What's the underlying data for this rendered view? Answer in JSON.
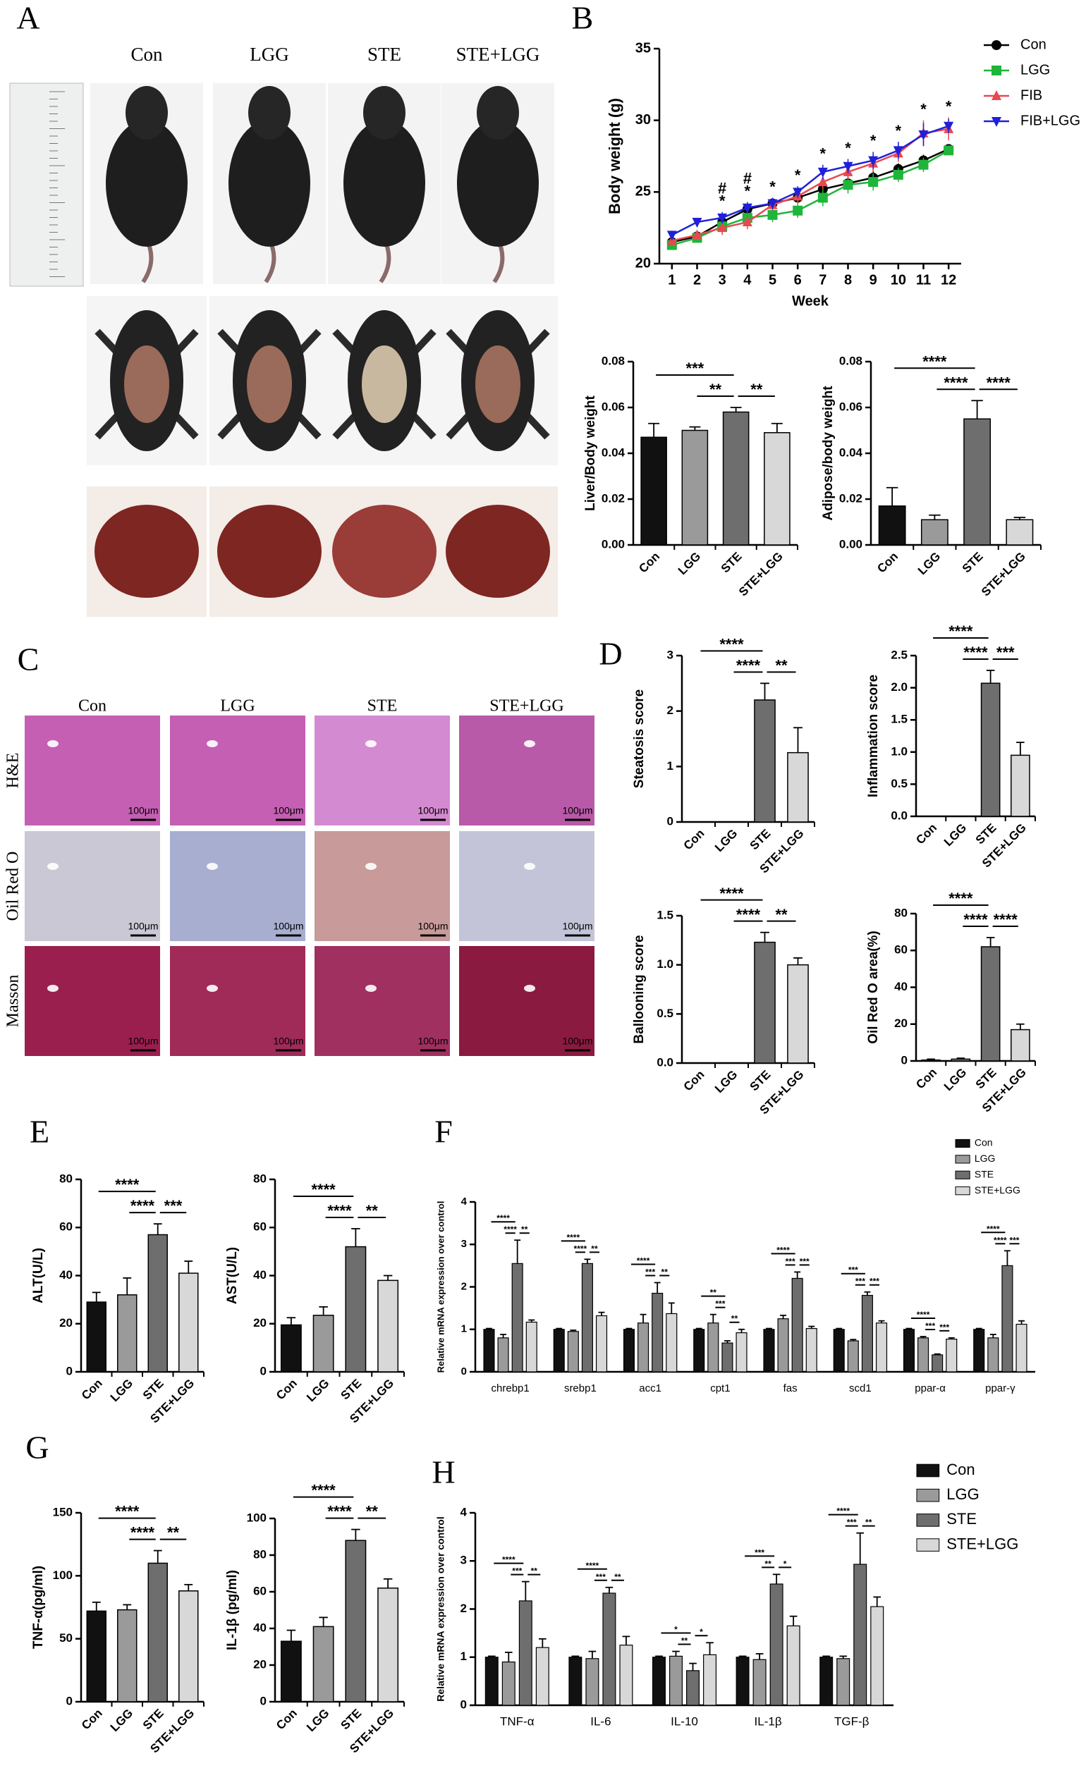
{
  "figure": {
    "panel_labels": [
      "A",
      "B",
      "C",
      "D",
      "E",
      "F",
      "G",
      "H"
    ],
    "photo_groups": [
      "Con",
      "LGG",
      "STE",
      "STE+LGG"
    ],
    "histology_groups": [
      "Con",
      "LGG",
      "STE",
      "STE+LGG"
    ],
    "histology_stains": [
      "H&E",
      "Oil Red O",
      "Masson"
    ],
    "scale_bar": "100μm"
  },
  "chart_data": [
    {
      "type": "line",
      "xlabel": "Week",
      "ylabel": "Body weight (g)",
      "x": [
        1,
        2,
        3,
        4,
        5,
        6,
        7,
        8,
        9,
        10,
        11,
        12
      ],
      "xlim": [
        0.5,
        12.5
      ],
      "xticks": [
        1,
        2,
        3,
        4,
        5,
        6,
        7,
        8,
        9,
        10,
        11,
        12
      ],
      "ylim": [
        20,
        35
      ],
      "yticks": [
        20,
        25,
        30,
        35
      ],
      "legend": "upper right",
      "series": [
        {
          "name": "Con",
          "color": "#000000",
          "marker": "circle",
          "values": [
            21.5,
            21.9,
            22.9,
            23.8,
            24.2,
            24.6,
            25.2,
            25.6,
            26.0,
            26.6,
            27.2,
            28.0
          ],
          "errors": [
            0.3,
            0.3,
            0.4,
            0.3,
            0.3,
            0.3,
            0.5,
            0.5,
            0.5,
            0.4,
            0.4,
            0.3
          ]
        },
        {
          "name": "LGG",
          "color": "#1fb53a",
          "marker": "square",
          "values": [
            21.3,
            21.8,
            22.6,
            23.2,
            23.4,
            23.7,
            24.6,
            25.5,
            25.7,
            26.2,
            26.9,
            27.9
          ],
          "errors": [
            0.3,
            0.3,
            0.5,
            0.5,
            0.5,
            0.5,
            0.6,
            0.6,
            0.6,
            0.5,
            0.5,
            0.3
          ]
        },
        {
          "name": "FIB",
          "color": "#e84850",
          "marker": "triangle-up",
          "values": [
            21.6,
            22.0,
            22.5,
            22.9,
            24.1,
            24.7,
            25.7,
            26.4,
            27.0,
            27.7,
            29.1,
            29.4
          ],
          "errors": [
            0.3,
            0.3,
            0.5,
            0.5,
            0.4,
            0.5,
            0.5,
            0.5,
            0.6,
            0.6,
            0.9,
            0.8
          ]
        },
        {
          "name": "FIB+LGG",
          "color": "#2020d8",
          "marker": "triangle-down",
          "values": [
            22.0,
            22.9,
            23.2,
            23.9,
            24.2,
            25.0,
            26.4,
            26.8,
            27.2,
            27.9,
            29.0,
            29.6
          ],
          "errors": [
            0.3,
            0.3,
            0.4,
            0.4,
            0.4,
            0.4,
            0.5,
            0.5,
            0.6,
            0.6,
            0.8,
            0.5
          ]
        }
      ],
      "annotations": [
        {
          "x": 3,
          "text": "*"
        },
        {
          "x": 3,
          "text": "#",
          "color": "#4a4ae0"
        },
        {
          "x": 4,
          "text": "*"
        },
        {
          "x": 4,
          "text": "#",
          "color": "#4a4ae0"
        },
        {
          "x": 5,
          "text": "*"
        },
        {
          "x": 6,
          "text": "*"
        },
        {
          "x": 7,
          "text": "*"
        },
        {
          "x": 8,
          "text": "*"
        },
        {
          "x": 9,
          "text": "*"
        },
        {
          "x": 10,
          "text": "*"
        },
        {
          "x": 11,
          "text": "*"
        },
        {
          "x": 12,
          "text": "*"
        }
      ]
    },
    {
      "type": "bar",
      "ylabel": "Liver/Body weight",
      "categories": [
        "Con",
        "LGG",
        "STE",
        "STE+LGG"
      ],
      "colors": [
        "#111111",
        "#9a9a9a",
        "#6e6e6e",
        "#d8d8d8"
      ],
      "values": [
        0.047,
        0.05,
        0.058,
        0.049
      ],
      "errors": [
        0.006,
        0.0015,
        0.002,
        0.004
      ],
      "ylim": [
        0,
        0.08
      ],
      "yticks": [
        {
          "value": 0,
          "label": "0.00"
        },
        {
          "value": 0.02,
          "label": "0.02"
        },
        {
          "value": 0.04,
          "label": "0.04"
        },
        {
          "value": 0.06,
          "label": "0.06"
        },
        {
          "value": 0.08,
          "label": "0.08"
        }
      ],
      "annotations": [
        {
          "between": [
            "Con",
            "STE"
          ],
          "text": "***"
        },
        {
          "between": [
            "LGG",
            "STE"
          ],
          "text": "**"
        },
        {
          "between": [
            "STE",
            "STE+LGG"
          ],
          "text": "**"
        }
      ]
    },
    {
      "type": "bar",
      "ylabel": "Adipose/body weight",
      "categories": [
        "Con",
        "LGG",
        "STE",
        "STE+LGG"
      ],
      "colors": [
        "#111111",
        "#9a9a9a",
        "#6e6e6e",
        "#d8d8d8"
      ],
      "values": [
        0.017,
        0.011,
        0.055,
        0.011
      ],
      "errors": [
        0.008,
        0.002,
        0.008,
        0.001
      ],
      "ylim": [
        0,
        0.08
      ],
      "yticks": [
        {
          "value": 0,
          "label": "0.00"
        },
        {
          "value": 0.02,
          "label": "0.02"
        },
        {
          "value": 0.04,
          "label": "0.04"
        },
        {
          "value": 0.06,
          "label": "0.06"
        },
        {
          "value": 0.08,
          "label": "0.08"
        }
      ],
      "annotations": [
        {
          "between": [
            "Con",
            "STE"
          ],
          "text": "****"
        },
        {
          "between": [
            "LGG",
            "STE"
          ],
          "text": "****"
        },
        {
          "between": [
            "STE",
            "STE+LGG"
          ],
          "text": "****"
        }
      ]
    },
    {
      "type": "bar",
      "ylabel": "Steatosis score",
      "categories": [
        "Con",
        "LGG",
        "STE",
        "STE+LGG"
      ],
      "colors": [
        "#111111",
        "#9a9a9a",
        "#6e6e6e",
        "#d8d8d8"
      ],
      "values": [
        0,
        0,
        2.2,
        1.25
      ],
      "errors": [
        0,
        0,
        0.3,
        0.45
      ],
      "ylim": [
        0,
        3
      ],
      "yticks": [
        0,
        1,
        2,
        3
      ],
      "annotations": [
        {
          "between": [
            "Con",
            "STE"
          ],
          "text": "****"
        },
        {
          "between": [
            "LGG",
            "STE"
          ],
          "text": "****"
        },
        {
          "between": [
            "STE",
            "STE+LGG"
          ],
          "text": "**"
        }
      ]
    },
    {
      "type": "bar",
      "ylabel": "Inflammation score",
      "categories": [
        "Con",
        "LGG",
        "STE",
        "STE+LGG"
      ],
      "colors": [
        "#111111",
        "#9a9a9a",
        "#6e6e6e",
        "#d8d8d8"
      ],
      "values": [
        0,
        0,
        2.07,
        0.95
      ],
      "errors": [
        0,
        0,
        0.2,
        0.2
      ],
      "ylim": [
        0,
        2.5
      ],
      "yticks": [
        {
          "value": 0,
          "label": "0.0"
        },
        0.5,
        {
          "value": 1,
          "label": "1.0"
        },
        1.5,
        {
          "value": 2,
          "label": "2.0"
        },
        2.5
      ],
      "annotations": [
        {
          "between": [
            "Con",
            "STE"
          ],
          "text": "****"
        },
        {
          "between": [
            "LGG",
            "STE"
          ],
          "text": "****"
        },
        {
          "between": [
            "STE",
            "STE+LGG"
          ],
          "text": "***"
        }
      ]
    },
    {
      "type": "bar",
      "ylabel": "Ballooning score",
      "categories": [
        "Con",
        "LGG",
        "STE",
        "STE+LGG"
      ],
      "colors": [
        "#111111",
        "#9a9a9a",
        "#6e6e6e",
        "#d8d8d8"
      ],
      "values": [
        0,
        0,
        1.23,
        1.0
      ],
      "errors": [
        0,
        0,
        0.1,
        0.07
      ],
      "ylim": [
        0,
        1.5
      ],
      "yticks": [
        {
          "value": 0,
          "label": "0.0"
        },
        0.5,
        {
          "value": 1,
          "label": "1.0"
        },
        1.5
      ],
      "annotations": [
        {
          "between": [
            "Con",
            "STE"
          ],
          "text": "****"
        },
        {
          "between": [
            "LGG",
            "STE"
          ],
          "text": "****"
        },
        {
          "between": [
            "STE",
            "STE+LGG"
          ],
          "text": "**"
        }
      ]
    },
    {
      "type": "bar",
      "ylabel": "Oil Red O area(%)",
      "categories": [
        "Con",
        "LGG",
        "STE",
        "STE+LGG"
      ],
      "colors": [
        "#111111",
        "#9a9a9a",
        "#6e6e6e",
        "#d8d8d8"
      ],
      "values": [
        0.5,
        1,
        62,
        17
      ],
      "errors": [
        0.5,
        0.5,
        5,
        3
      ],
      "ylim": [
        0,
        80
      ],
      "yticks": [
        0,
        20,
        40,
        60,
        80
      ],
      "annotations": [
        {
          "between": [
            "Con",
            "STE"
          ],
          "text": "****"
        },
        {
          "between": [
            "LGG",
            "STE"
          ],
          "text": "****"
        },
        {
          "between": [
            "STE",
            "STE+LGG"
          ],
          "text": "****"
        }
      ]
    },
    {
      "type": "bar",
      "ylabel": "ALT(U/L)",
      "categories": [
        "Con",
        "LGG",
        "STE",
        "STE+LGG"
      ],
      "colors": [
        "#111111",
        "#9a9a9a",
        "#6e6e6e",
        "#d8d8d8"
      ],
      "values": [
        29,
        32,
        57,
        41
      ],
      "errors": [
        4,
        7,
        4.5,
        5
      ],
      "ylim": [
        0,
        80
      ],
      "yticks": [
        0,
        20,
        40,
        60,
        80
      ],
      "annotations": [
        {
          "between": [
            "Con",
            "STE"
          ],
          "text": "****"
        },
        {
          "between": [
            "LGG",
            "STE"
          ],
          "text": "****"
        },
        {
          "between": [
            "STE",
            "STE+LGG"
          ],
          "text": "***"
        }
      ]
    },
    {
      "type": "bar",
      "ylabel": "AST(U/L)",
      "categories": [
        "Con",
        "LGG",
        "STE",
        "STE+LGG"
      ],
      "colors": [
        "#111111",
        "#9a9a9a",
        "#6e6e6e",
        "#d8d8d8"
      ],
      "values": [
        19.5,
        23.5,
        52,
        38
      ],
      "errors": [
        3,
        3.5,
        7.5,
        2
      ],
      "ylim": [
        0,
        80
      ],
      "yticks": [
        0,
        20,
        40,
        60,
        80
      ],
      "annotations": [
        {
          "between": [
            "Con",
            "STE"
          ],
          "text": "****"
        },
        {
          "between": [
            "LGG",
            "STE"
          ],
          "text": "****"
        },
        {
          "between": [
            "STE",
            "STE+LGG"
          ],
          "text": "**"
        }
      ]
    },
    {
      "type": "bar",
      "ylabel": "Relative mRNA expression over control",
      "categories": [
        "chrebp1",
        "srebp1",
        "acc1",
        "cpt1",
        "fas",
        "scd1",
        "ppar-α",
        "ppar-γ"
      ],
      "ylim": [
        0,
        4
      ],
      "yticks": [
        0,
        1,
        2,
        3,
        4
      ],
      "legend": "upper right",
      "series": [
        {
          "name": "Con",
          "color": "#111111",
          "values": [
            1,
            1,
            1,
            1,
            1,
            1,
            1,
            1
          ],
          "errors": [
            0.02,
            0.02,
            0.02,
            0.02,
            0.02,
            0.02,
            0.02,
            0.02
          ]
        },
        {
          "name": "LGG",
          "color": "#9a9a9a",
          "values": [
            0.8,
            0.95,
            1.15,
            1.15,
            1.25,
            0.73,
            0.8,
            0.8
          ],
          "errors": [
            0.08,
            0.03,
            0.2,
            0.2,
            0.08,
            0.03,
            0.03,
            0.08
          ]
        },
        {
          "name": "STE",
          "color": "#6e6e6e",
          "values": [
            2.55,
            2.55,
            1.85,
            0.68,
            2.2,
            1.8,
            0.4,
            2.5
          ],
          "errors": [
            0.55,
            0.1,
            0.25,
            0.05,
            0.15,
            0.08,
            0.02,
            0.35
          ]
        },
        {
          "name": "STE+LGG",
          "color": "#d8d8d8",
          "values": [
            1.17,
            1.32,
            1.37,
            0.92,
            1.02,
            1.15,
            0.77,
            1.12
          ],
          "errors": [
            0.05,
            0.08,
            0.25,
            0.08,
            0.05,
            0.05,
            0.03,
            0.08
          ]
        }
      ],
      "annotation_pairs": [
        [
          "Con",
          "STE"
        ],
        [
          "LGG",
          "STE"
        ],
        [
          "STE",
          "STE+LGG"
        ]
      ],
      "group_annotations": [
        [
          "****",
          "****",
          "**"
        ],
        [
          "****",
          "****",
          "**"
        ],
        [
          "****",
          "***",
          "**"
        ],
        [
          "**",
          "***",
          "**"
        ],
        [
          "****",
          "***",
          "***"
        ],
        [
          "***",
          "***",
          "***"
        ],
        [
          "****",
          "***",
          "***"
        ],
        [
          "****",
          "****",
          "***"
        ]
      ]
    },
    {
      "type": "bar",
      "ylabel": "TNF-α(pg/ml)",
      "categories": [
        "Con",
        "LGG",
        "STE",
        "STE+LGG"
      ],
      "colors": [
        "#111111",
        "#9a9a9a",
        "#6e6e6e",
        "#d8d8d8"
      ],
      "values": [
        72,
        73,
        110,
        88
      ],
      "errors": [
        7,
        4,
        10,
        5
      ],
      "ylim": [
        0,
        150
      ],
      "yticks": [
        0,
        50,
        100,
        150
      ],
      "annotations": [
        {
          "between": [
            "Con",
            "STE"
          ],
          "text": "****"
        },
        {
          "between": [
            "LGG",
            "STE"
          ],
          "text": "****"
        },
        {
          "between": [
            "STE",
            "STE+LGG"
          ],
          "text": "**"
        }
      ]
    },
    {
      "type": "bar",
      "ylabel": "IL-1β (pg/ml)",
      "categories": [
        "Con",
        "LGG",
        "STE",
        "STE+LGG"
      ],
      "colors": [
        "#111111",
        "#9a9a9a",
        "#6e6e6e",
        "#d8d8d8"
      ],
      "values": [
        33,
        41,
        88,
        62
      ],
      "errors": [
        6,
        5,
        6,
        5
      ],
      "ylim": [
        0,
        100
      ],
      "yticks": [
        0,
        20,
        40,
        60,
        80,
        100
      ],
      "annotations": [
        {
          "between": [
            "Con",
            "STE"
          ],
          "text": "****"
        },
        {
          "between": [
            "LGG",
            "STE"
          ],
          "text": "****"
        },
        {
          "between": [
            "STE",
            "STE+LGG"
          ],
          "text": "**"
        }
      ]
    },
    {
      "type": "bar",
      "ylabel": "Relative mRNA expression over control",
      "categories": [
        "TNF-α",
        "IL-6",
        "IL-10",
        "IL-1β",
        "TGF-β"
      ],
      "ylim": [
        0,
        4
      ],
      "yticks": [
        0,
        1,
        2,
        3,
        4
      ],
      "legend": "upper right",
      "series": [
        {
          "name": "Con",
          "color": "#111111",
          "values": [
            1,
            1,
            1,
            1,
            1
          ],
          "errors": [
            0.02,
            0.02,
            0.02,
            0.02,
            0.02
          ]
        },
        {
          "name": "LGG",
          "color": "#9a9a9a",
          "values": [
            0.9,
            0.97,
            1.02,
            0.95,
            0.97
          ],
          "errors": [
            0.2,
            0.15,
            0.1,
            0.12,
            0.05
          ]
        },
        {
          "name": "STE",
          "color": "#6e6e6e",
          "values": [
            2.17,
            2.33,
            0.72,
            2.52,
            2.93
          ],
          "errors": [
            0.4,
            0.12,
            0.15,
            0.2,
            0.65
          ]
        },
        {
          "name": "STE+LGG",
          "color": "#d8d8d8",
          "values": [
            1.2,
            1.25,
            1.05,
            1.65,
            2.05
          ],
          "errors": [
            0.18,
            0.18,
            0.25,
            0.2,
            0.2
          ]
        }
      ],
      "annotation_pairs": [
        [
          "Con",
          "STE"
        ],
        [
          "LGG",
          "STE"
        ],
        [
          "STE",
          "STE+LGG"
        ]
      ],
      "group_annotations": [
        [
          "****",
          "***",
          "**"
        ],
        [
          "****",
          "***",
          "**"
        ],
        [
          "*",
          "**",
          "*"
        ],
        [
          "***",
          "**",
          "*"
        ],
        [
          "****",
          "***",
          "**"
        ]
      ]
    }
  ]
}
